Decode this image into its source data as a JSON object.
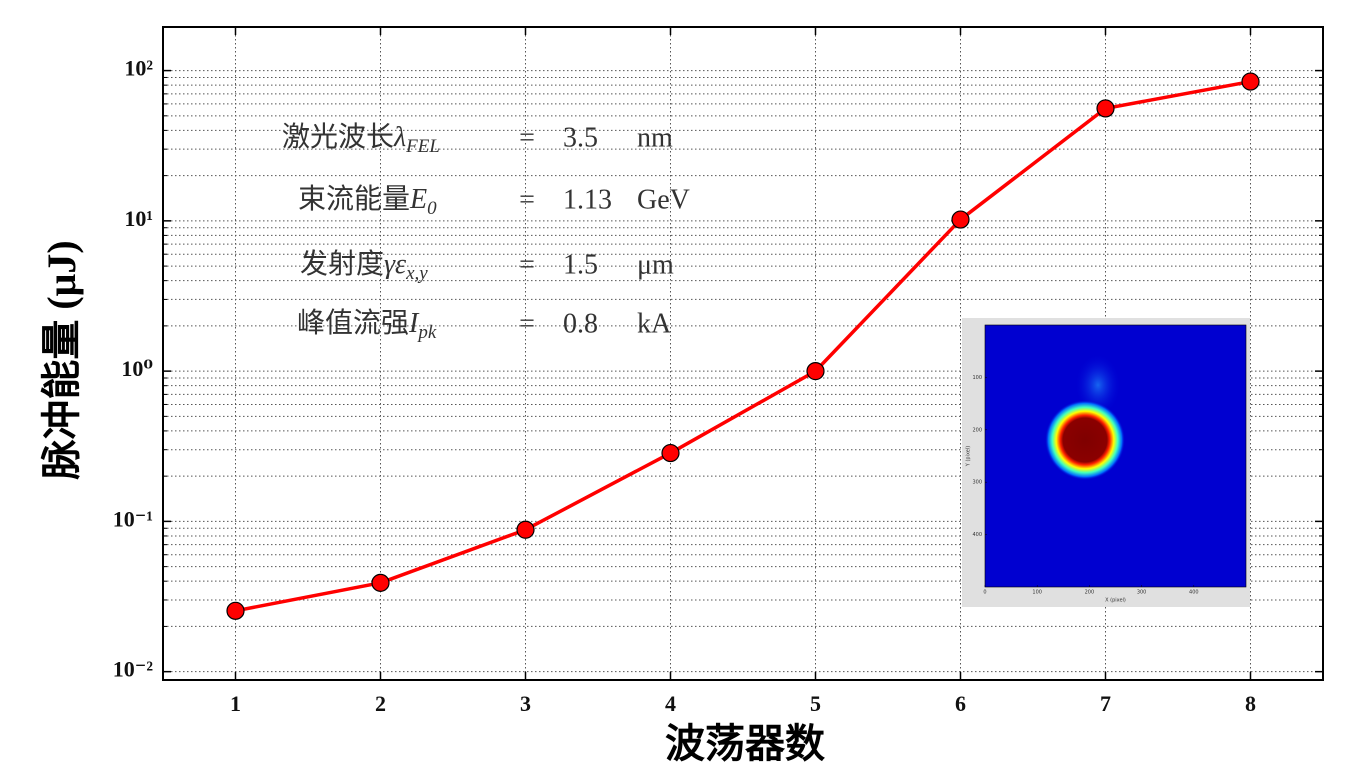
{
  "chart_data": {
    "type": "line",
    "x": [
      1,
      2,
      3,
      4,
      5,
      6,
      7,
      8
    ],
    "values": [
      0.0254,
      0.039,
      0.088,
      0.285,
      1.0,
      10.2,
      56,
      84.5
    ],
    "color": "#ff0000",
    "marker_edge": "#000000",
    "xlabel": "波荡器数",
    "ylabel": "脉冲能量 (μJ)",
    "xlim": [
      0.5,
      8.5
    ],
    "xticks": [
      1,
      2,
      3,
      4,
      5,
      6,
      7,
      8
    ],
    "ylim": [
      0.0088,
      195
    ],
    "log_y": true,
    "yticks": [
      {
        "value": 0.01,
        "label": "10⁻²"
      },
      {
        "value": 0.1,
        "label": "10⁻¹"
      },
      {
        "value": 1,
        "label": "10⁰"
      },
      {
        "value": 10,
        "label": "10¹"
      },
      {
        "value": 100,
        "label": "10²"
      }
    ],
    "yminorticks": [
      0.02,
      0.03,
      0.04,
      0.05,
      0.06,
      0.07,
      0.08,
      0.09,
      0.2,
      0.3,
      0.4,
      0.5,
      0.6,
      0.7,
      0.8,
      0.9,
      2,
      3,
      4,
      5,
      6,
      7,
      8,
      9,
      20,
      30,
      40,
      50,
      60,
      70,
      80,
      90
    ],
    "grid": true,
    "annotations": [
      {
        "text": "激光波长",
        "symbol": "λ",
        "subscript": "FEL",
        "equals": "=",
        "value": "3.5",
        "unit": "nm"
      },
      {
        "text": "束流能量",
        "symbol": "E",
        "subscript": "0",
        "equals": "=",
        "value": "1.13",
        "unit": "GeV"
      },
      {
        "text": "发射度",
        "symbol": "γε",
        "subscript": "x,y",
        "equals": "=",
        "value": "1.5",
        "unit": "μm"
      },
      {
        "text": "峰值流强",
        "symbol": "I",
        "subscript": "pk",
        "equals": "=",
        "value": "0.8",
        "unit": "kA"
      }
    ],
    "inset": {
      "xlabel": "X (pixel)",
      "ylabel": "Y (pixel)",
      "xlim": [
        0,
        500
      ],
      "xticks": [
        0,
        100,
        200,
        300,
        400
      ],
      "ylim": [
        0,
        500
      ],
      "yticks": [
        100,
        200,
        300,
        400
      ]
    }
  }
}
